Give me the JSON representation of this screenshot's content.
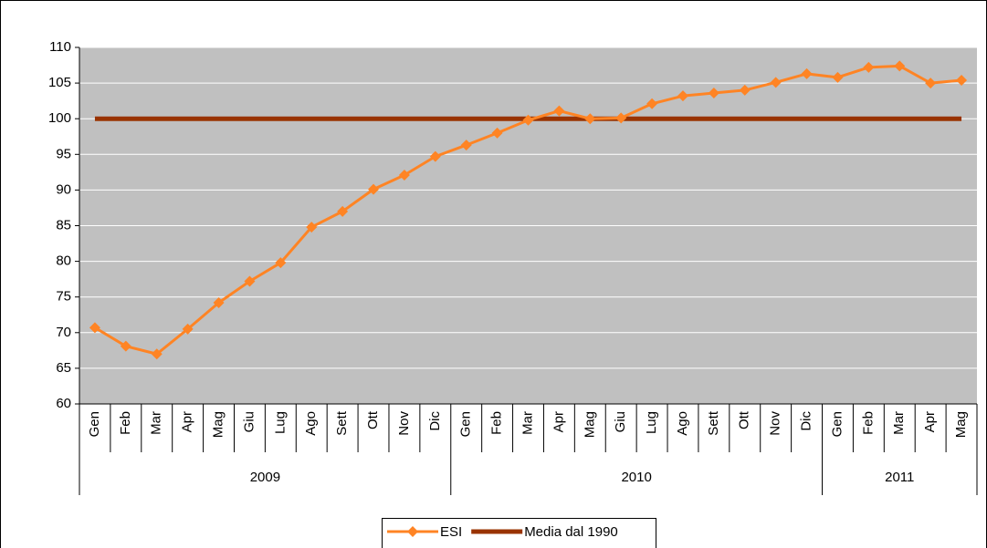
{
  "chart_data": {
    "type": "line",
    "groups": [
      {
        "label": "2009",
        "categories": [
          "Gen",
          "Feb",
          "Mar",
          "Apr",
          "Mag",
          "Giu",
          "Lug",
          "Ago",
          "Sett",
          "Ott",
          "Nov",
          "Dic"
        ]
      },
      {
        "label": "2010",
        "categories": [
          "Gen",
          "Feb",
          "Mar",
          "Apr",
          "Mag",
          "Giu",
          "Lug",
          "Ago",
          "Sett",
          "Ott",
          "Nov",
          "Dic"
        ]
      },
      {
        "label": "2011",
        "categories": [
          "Gen",
          "Feb",
          "Mar",
          "Apr",
          "Mag"
        ]
      }
    ],
    "series": [
      {
        "name": "ESI",
        "color": "#ff8424",
        "marker": "diamond",
        "line_width": 3,
        "values": [
          70.7,
          68.1,
          67.0,
          70.5,
          74.2,
          77.2,
          79.8,
          84.8,
          87.0,
          90.1,
          92.1,
          94.7,
          96.3,
          98.0,
          99.8,
          101.1,
          100.0,
          100.1,
          102.1,
          103.2,
          103.6,
          104.0,
          105.1,
          106.3,
          105.8,
          107.2,
          107.4,
          105.0,
          105.4
        ]
      },
      {
        "name": "Media dal 1990",
        "color": "#993300",
        "line_width": 5,
        "values": [
          100,
          100,
          100,
          100,
          100,
          100,
          100,
          100,
          100,
          100,
          100,
          100,
          100,
          100,
          100,
          100,
          100,
          100,
          100,
          100,
          100,
          100,
          100,
          100,
          100,
          100,
          100,
          100,
          100
        ]
      }
    ],
    "ylim": [
      60,
      110
    ],
    "yticks": [
      60,
      65,
      70,
      75,
      80,
      85,
      90,
      95,
      100,
      105,
      110
    ],
    "grid": true,
    "plot_background": "#c0c0c0",
    "legend": "bottom"
  }
}
